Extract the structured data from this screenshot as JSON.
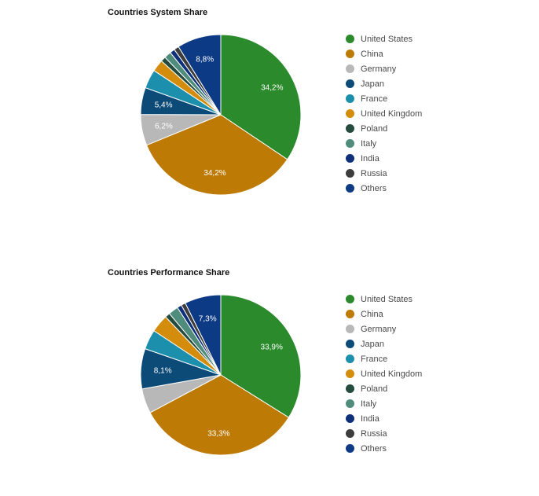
{
  "chart_data": [
    {
      "type": "pie",
      "title": "Countries System Share",
      "unit": "%",
      "categories": [
        "United States",
        "China",
        "Germany",
        "Japan",
        "France",
        "United Kingdom",
        "Poland",
        "Italy",
        "India",
        "Russia",
        "Others"
      ],
      "values": [
        34.2,
        34.2,
        6.2,
        5.4,
        3.8,
        2.4,
        1.0,
        1.4,
        1.0,
        1.0,
        8.8
      ],
      "slice_labels": [
        "34,2%",
        "34,2%",
        "6,2%",
        "5,4%",
        "",
        "",
        "",
        "",
        "",
        "",
        "8,8%"
      ],
      "colors": [
        "#2b8a2b",
        "#bd7a05",
        "#b8b8b8",
        "#0c4a78",
        "#1c8fad",
        "#d48c0c",
        "#234b3e",
        "#4f8c7b",
        "#0e2f7a",
        "#3d3d3d",
        "#0d3a85"
      ],
      "legend_position": "right"
    },
    {
      "type": "pie",
      "title": "Countries Performance Share",
      "unit": "%",
      "categories": [
        "United States",
        "China",
        "Germany",
        "Japan",
        "France",
        "United Kingdom",
        "Poland",
        "Italy",
        "India",
        "Russia",
        "Others"
      ],
      "values": [
        33.9,
        33.3,
        5.0,
        8.1,
        4.0,
        3.6,
        1.0,
        2.0,
        0.9,
        0.9,
        7.3
      ],
      "slice_labels": [
        "33,9%",
        "33,3%",
        "",
        "8,1%",
        "",
        "",
        "",
        "",
        "",
        "",
        "7,3%"
      ],
      "colors": [
        "#2b8a2b",
        "#bd7a05",
        "#b8b8b8",
        "#0c4a78",
        "#1c8fad",
        "#d48c0c",
        "#234b3e",
        "#4f8c7b",
        "#0e2f7a",
        "#3d3d3d",
        "#0d3a85"
      ],
      "legend_position": "right"
    }
  ]
}
